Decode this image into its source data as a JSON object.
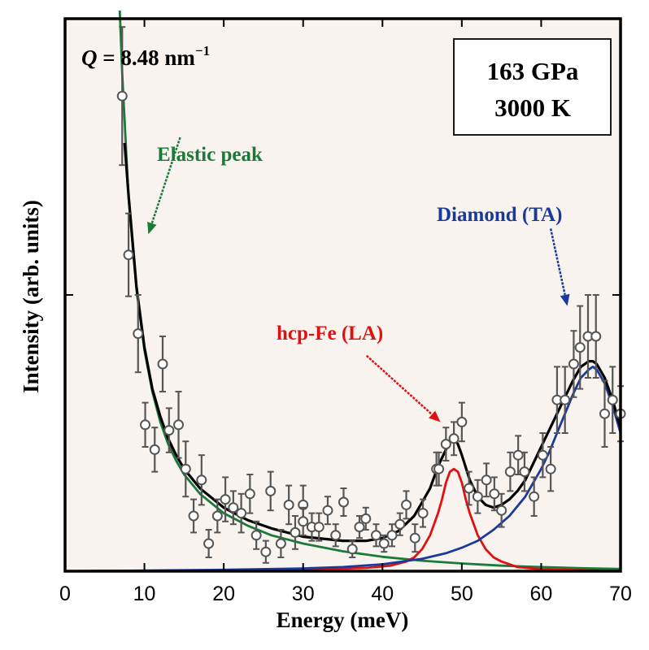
{
  "chart_data": {
    "type": "scatter",
    "title": "",
    "xlabel": "Energy (meV)",
    "ylabel": "Intensity (arb. units)",
    "xlim": [
      0,
      70
    ],
    "ylim": [
      0,
      2
    ],
    "x_ticks": [
      0,
      10,
      20,
      30,
      40,
      50,
      60,
      70
    ],
    "x_tick_labels": [
      "0",
      "10",
      "20",
      "30",
      "40",
      "50",
      "60",
      "70"
    ],
    "y_ticks": [
      1
    ],
    "y_tick_labels": [],
    "grid": false,
    "colors": {
      "data": "#555555",
      "total": "#000000",
      "elastic": "#1a7a3a",
      "hcp_fe": "#e01010",
      "diamond": "#1a3a9a",
      "background": "#f8f3ee"
    },
    "q_label": {
      "symbol": "Q",
      "text": " = 8.48 nm",
      "sup": "−1"
    },
    "conditions": [
      "163 GPa",
      "3000 K"
    ],
    "annotations": [
      {
        "text": "Elastic peak",
        "color_key": "elastic",
        "arrow_to": [
          10.5,
          1.22
        ],
        "arrow_from": [
          14.5,
          1.57
        ]
      },
      {
        "text": "hcp-Fe (LA)",
        "color_key": "hcp_fe",
        "arrow_to": [
          47.3,
          0.54
        ],
        "arrow_from": [
          38.0,
          0.78
        ]
      },
      {
        "text": "Diamond (TA)",
        "color_key": "diamond",
        "arrow_to": [
          63.3,
          0.96
        ],
        "arrow_from": [
          61.2,
          1.24
        ]
      }
    ],
    "data_points": {
      "x": [
        7.2,
        8.0,
        9.2,
        10.1,
        11.3,
        12.3,
        13.1,
        14.3,
        15.2,
        16.2,
        17.2,
        18.1,
        19.2,
        20.2,
        21.2,
        22.2,
        23.3,
        24.1,
        25.3,
        25.9,
        27.2,
        28.2,
        29.0,
        30.0,
        30.0,
        31.1,
        32.0,
        33.1,
        34.1,
        35.1,
        36.2,
        37.1,
        37.9,
        39.2,
        40.2,
        41.2,
        42.2,
        43.0,
        44.1,
        45.1,
        46.8,
        47.1,
        48.0,
        49.0,
        50.0,
        50.9,
        52.0,
        53.1,
        54.1,
        55.0,
        56.1,
        57.1,
        57.9,
        59.1,
        60.2,
        61.2,
        62.0,
        63.0,
        64.1,
        64.9,
        65.9,
        66.9,
        68.0,
        69.0,
        70.0
      ],
      "y": [
        1.72,
        1.145,
        0.86,
        0.53,
        0.44,
        0.75,
        0.51,
        0.53,
        0.37,
        0.2,
        0.33,
        0.1,
        0.2,
        0.26,
        0.23,
        0.21,
        0.28,
        0.13,
        0.07,
        0.29,
        0.1,
        0.24,
        0.14,
        0.24,
        0.18,
        0.16,
        0.16,
        0.22,
        0.13,
        0.25,
        0.08,
        0.16,
        0.19,
        0.13,
        0.1,
        0.13,
        0.17,
        0.24,
        0.12,
        0.21,
        0.37,
        0.37,
        0.46,
        0.48,
        0.54,
        0.3,
        0.27,
        0.33,
        0.28,
        0.22,
        0.36,
        0.42,
        0.36,
        0.27,
        0.42,
        0.37,
        0.62,
        0.62,
        0.75,
        0.81,
        0.85,
        0.85,
        0.57,
        0.62,
        0.57
      ],
      "err": [
        0.25,
        0.15,
        0.14,
        0.08,
        0.08,
        0.1,
        0.08,
        0.12,
        0.1,
        0.06,
        0.09,
        0.05,
        0.06,
        0.08,
        0.06,
        0.07,
        0.07,
        0.05,
        0.04,
        0.07,
        0.05,
        0.07,
        0.06,
        0.07,
        0.05,
        0.05,
        0.05,
        0.05,
        0.04,
        0.05,
        0.03,
        0.04,
        0.04,
        0.04,
        0.03,
        0.04,
        0.04,
        0.05,
        0.05,
        0.05,
        0.06,
        0.06,
        0.06,
        0.06,
        0.07,
        0.06,
        0.06,
        0.06,
        0.06,
        0.06,
        0.07,
        0.07,
        0.07,
        0.07,
        0.08,
        0.08,
        0.12,
        0.12,
        0.12,
        0.15,
        0.15,
        0.15,
        0.12,
        0.12,
        0.1
      ]
    },
    "series": [
      {
        "name": "Elastic peak",
        "color_key": "elastic",
        "x": [
          6.8,
          7.2,
          8,
          9,
          10,
          11,
          12,
          13,
          14,
          15,
          17,
          20,
          23,
          26,
          30,
          35,
          40,
          45,
          50,
          55,
          60,
          65,
          70
        ],
        "y": [
          2.1,
          1.8,
          1.35,
          1.02,
          0.8,
          0.65,
          0.54,
          0.46,
          0.4,
          0.35,
          0.28,
          0.21,
          0.165,
          0.13,
          0.1,
          0.072,
          0.052,
          0.038,
          0.028,
          0.02,
          0.015,
          0.011,
          0.008
        ]
      },
      {
        "name": "hcp-Fe (LA)",
        "color_key": "hcp_fe",
        "x": [
          0,
          30,
          38,
          41,
          43,
          44,
          45,
          46,
          47,
          47.5,
          48,
          48.5,
          49,
          49.5,
          50,
          50.5,
          51,
          52,
          53,
          54,
          55,
          57,
          60,
          70
        ],
        "y": [
          0,
          0.005,
          0.012,
          0.02,
          0.035,
          0.05,
          0.08,
          0.13,
          0.21,
          0.26,
          0.32,
          0.36,
          0.37,
          0.36,
          0.32,
          0.26,
          0.21,
          0.13,
          0.08,
          0.05,
          0.035,
          0.015,
          0.007,
          0
        ]
      },
      {
        "name": "Diamond (TA)",
        "color_key": "diamond",
        "x": [
          0,
          20,
          30,
          35,
          40,
          45,
          48,
          50,
          52,
          54,
          56,
          58,
          60,
          61,
          62,
          63,
          64,
          65,
          66,
          66.5,
          67,
          68,
          69,
          70
        ],
        "y": [
          0,
          0.005,
          0.01,
          0.015,
          0.025,
          0.045,
          0.065,
          0.085,
          0.11,
          0.15,
          0.2,
          0.27,
          0.37,
          0.43,
          0.5,
          0.57,
          0.64,
          0.7,
          0.73,
          0.74,
          0.73,
          0.68,
          0.6,
          0.5
        ]
      },
      {
        "name": "Total fit",
        "color_key": "total",
        "x": [
          7.5,
          8,
          9,
          10,
          11,
          12,
          13,
          14,
          15,
          17,
          20,
          23,
          26,
          30,
          35,
          38,
          40,
          42,
          44,
          45,
          46,
          47,
          48,
          48.5,
          49,
          49.5,
          50,
          51,
          52,
          53,
          54,
          55,
          56,
          57,
          58,
          59,
          60,
          61,
          62,
          63,
          64,
          65,
          66,
          66.5,
          67,
          68,
          69,
          70
        ],
        "y": [
          1.55,
          1.36,
          1.03,
          0.81,
          0.66,
          0.56,
          0.48,
          0.42,
          0.37,
          0.3,
          0.23,
          0.185,
          0.155,
          0.125,
          0.11,
          0.11,
          0.12,
          0.145,
          0.2,
          0.25,
          0.3,
          0.38,
          0.44,
          0.47,
          0.48,
          0.46,
          0.42,
          0.33,
          0.27,
          0.24,
          0.23,
          0.24,
          0.26,
          0.29,
          0.33,
          0.39,
          0.45,
          0.51,
          0.57,
          0.63,
          0.69,
          0.74,
          0.76,
          0.76,
          0.75,
          0.7,
          0.62,
          0.52
        ]
      }
    ]
  }
}
